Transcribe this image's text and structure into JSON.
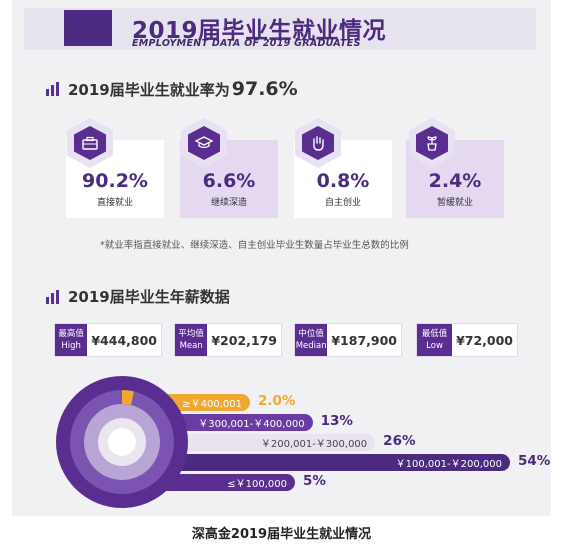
{
  "header": {
    "title": "2019届毕业生就业情况",
    "subtitle": "EMPLOYMENT DATA OF 2019 GRADUATES"
  },
  "employment": {
    "title_prefix": "2019届毕业生就业率为",
    "rate": "97.6%",
    "stats": [
      {
        "value": "90.2%",
        "label": "直接就业",
        "icon": "briefcase-icon"
      },
      {
        "value": "6.6%",
        "label": "继续深造",
        "icon": "graduation-cap-icon"
      },
      {
        "value": "0.8%",
        "label": "自主创业",
        "icon": "raised-hand-icon"
      },
      {
        "value": "2.4%",
        "label": "暂缓就业",
        "icon": "sprout-pot-icon"
      }
    ],
    "footnote": "*就业率指直接就业、继续深造、自主创业毕业生数量占毕业生总数的比例"
  },
  "salary": {
    "title": "2019届毕业生年薪数据",
    "cards": [
      {
        "tag_cn": "最高值",
        "tag_en": "High",
        "value": "¥444,800"
      },
      {
        "tag_cn": "平均值",
        "tag_en": "Mean",
        "value": "¥202,179"
      },
      {
        "tag_cn": "中位值",
        "tag_en": "Median",
        "value": "¥187,900"
      },
      {
        "tag_cn": "最低值",
        "tag_en": "Low",
        "value": "¥72,000"
      }
    ]
  },
  "chart_data": {
    "type": "bar",
    "categories": [
      "≥￥400,001",
      "￥300,001-￥400,000",
      "￥200,001-￥300,000",
      "￥100,001-￥200,000",
      "≤￥100,000"
    ],
    "values": [
      2.0,
      13,
      26,
      54,
      5
    ],
    "value_labels": [
      "2.0%",
      "13%",
      "26%",
      "54%",
      "5%"
    ],
    "colors": [
      "#f0a830",
      "#6a3ba3",
      "#e8e3ee",
      "#4b2a80",
      "#5a2d91"
    ],
    "text_colors": [
      "#ffffff",
      "#ffffff",
      "#444444",
      "#ffffff",
      "#ffffff"
    ],
    "pct_colors": [
      "#f0a830",
      "#4b2a80",
      "#4b2a80",
      "#4b2a80",
      "#4b2a80"
    ]
  },
  "caption": "深高金2019届毕业生就业情况"
}
